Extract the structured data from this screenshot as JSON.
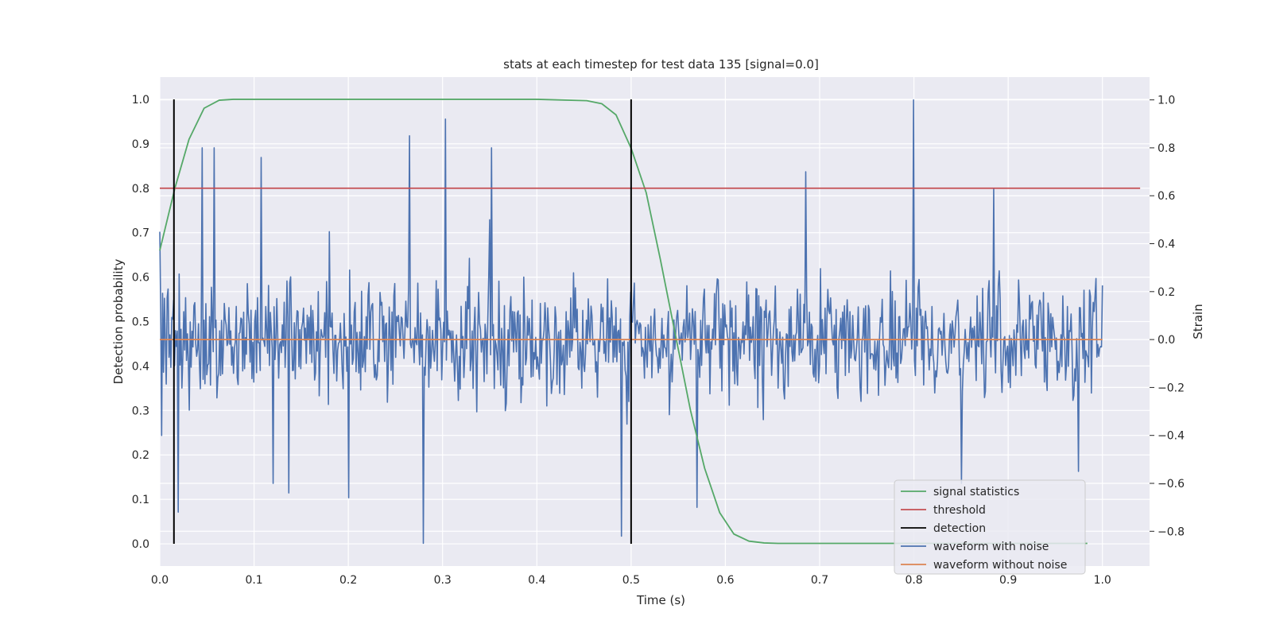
{
  "chart_data": {
    "type": "line",
    "title": "stats at each timestep for test data 135 [signal=0.0]",
    "xlabel": "Time (s)",
    "ylabel": "Detection probability",
    "y2label": "Strain",
    "xlim": [
      0.0,
      1.05
    ],
    "ylim": [
      -0.05,
      1.05
    ],
    "y2lim": [
      -0.945,
      1.095
    ],
    "xticks": [
      "0.0",
      "0.1",
      "0.2",
      "0.3",
      "0.4",
      "0.5",
      "0.6",
      "0.7",
      "0.8",
      "0.9",
      "1.0"
    ],
    "yticks": [
      "0.0",
      "0.1",
      "0.2",
      "0.3",
      "0.4",
      "0.5",
      "0.6",
      "0.7",
      "0.8",
      "0.9",
      "1.0"
    ],
    "y2ticks": [
      "−0.8",
      "−0.6",
      "−0.4",
      "−0.2",
      "0.0",
      "0.2",
      "0.4",
      "0.6",
      "0.8",
      "1.0"
    ],
    "grid": true,
    "legend_position": "lower-right",
    "series": [
      {
        "name": "signal statistics",
        "color": "#55a868",
        "axis": "left",
        "x": [
          0.0,
          0.016,
          0.031,
          0.047,
          0.063,
          0.078,
          0.1,
          0.2,
          0.3,
          0.4,
          0.453,
          0.469,
          0.484,
          0.5,
          0.516,
          0.531,
          0.547,
          0.563,
          0.578,
          0.594,
          0.609,
          0.625,
          0.641,
          0.656,
          0.7,
          0.8,
          0.9,
          0.984
        ],
        "y": [
          0.66,
          0.8,
          0.91,
          0.98,
          0.998,
          1.0,
          1.0,
          1.0,
          1.0,
          1.0,
          0.997,
          0.99,
          0.965,
          0.89,
          0.79,
          0.64,
          0.47,
          0.3,
          0.17,
          0.07,
          0.022,
          0.006,
          0.002,
          0.001,
          0.001,
          0.001,
          0.001,
          0.001
        ]
      },
      {
        "name": "threshold",
        "color": "#c44e52",
        "axis": "left",
        "x": [
          0.0,
          1.04
        ],
        "y": [
          0.8,
          0.8
        ]
      },
      {
        "name": "detection",
        "color": "#000000",
        "axis": "left",
        "x": [
          0.015,
          0.5
        ],
        "y": [
          0.0,
          1.0
        ]
      },
      {
        "name": "waveform with noise",
        "color": "#4c72b0",
        "axis": "right",
        "x_range": [
          0.0,
          1.0
        ],
        "n_points": 1024,
        "min": -0.85,
        "max": 1.0,
        "peaks": [
          [
            0.0,
            0.45
          ],
          [
            0.002,
            -0.4
          ],
          [
            0.02,
            -0.72
          ],
          [
            0.045,
            0.8
          ],
          [
            0.058,
            0.8
          ],
          [
            0.108,
            0.76
          ],
          [
            0.12,
            -0.6
          ],
          [
            0.137,
            -0.64
          ],
          [
            0.18,
            0.45
          ],
          [
            0.2,
            -0.66
          ],
          [
            0.265,
            0.85
          ],
          [
            0.28,
            -0.85
          ],
          [
            0.303,
            0.92
          ],
          [
            0.35,
            0.5
          ],
          [
            0.352,
            0.8
          ],
          [
            0.49,
            -0.82
          ],
          [
            0.57,
            -0.7
          ],
          [
            0.685,
            0.7
          ],
          [
            0.8,
            1.0
          ],
          [
            0.85,
            -0.6
          ],
          [
            0.885,
            0.63
          ],
          [
            0.975,
            -0.55
          ]
        ]
      },
      {
        "name": "waveform without noise",
        "color": "#dd8452",
        "axis": "right",
        "x": [
          0.0,
          1.0
        ],
        "y": [
          0.0,
          0.0
        ]
      }
    ]
  }
}
